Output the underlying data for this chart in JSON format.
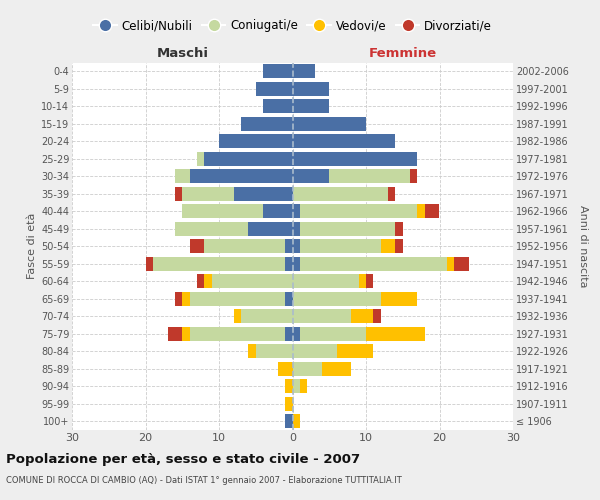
{
  "age_groups": [
    "100+",
    "95-99",
    "90-94",
    "85-89",
    "80-84",
    "75-79",
    "70-74",
    "65-69",
    "60-64",
    "55-59",
    "50-54",
    "45-49",
    "40-44",
    "35-39",
    "30-34",
    "25-29",
    "20-24",
    "15-19",
    "10-14",
    "5-9",
    "0-4"
  ],
  "birth_years": [
    "≤ 1906",
    "1907-1911",
    "1912-1916",
    "1917-1921",
    "1922-1926",
    "1927-1931",
    "1932-1936",
    "1937-1941",
    "1942-1946",
    "1947-1951",
    "1952-1956",
    "1957-1961",
    "1962-1966",
    "1967-1971",
    "1972-1976",
    "1977-1981",
    "1982-1986",
    "1987-1991",
    "1992-1996",
    "1997-2001",
    "2002-2006"
  ],
  "males": {
    "celibi": [
      1,
      0,
      0,
      0,
      0,
      1,
      0,
      1,
      0,
      1,
      1,
      6,
      4,
      8,
      14,
      12,
      10,
      7,
      4,
      5,
      4
    ],
    "coniugati": [
      0,
      0,
      0,
      0,
      5,
      13,
      7,
      13,
      11,
      18,
      11,
      10,
      11,
      7,
      2,
      1,
      0,
      0,
      0,
      0,
      0
    ],
    "vedovi": [
      0,
      1,
      1,
      2,
      1,
      1,
      1,
      1,
      1,
      0,
      0,
      0,
      0,
      0,
      0,
      0,
      0,
      0,
      0,
      0,
      0
    ],
    "divorziati": [
      0,
      0,
      0,
      0,
      0,
      2,
      0,
      1,
      1,
      1,
      2,
      0,
      0,
      1,
      0,
      0,
      0,
      0,
      0,
      0,
      0
    ]
  },
  "females": {
    "nubili": [
      0,
      0,
      0,
      0,
      0,
      1,
      0,
      0,
      0,
      1,
      1,
      1,
      1,
      0,
      5,
      17,
      14,
      10,
      5,
      5,
      3
    ],
    "coniugate": [
      0,
      0,
      1,
      4,
      6,
      9,
      8,
      12,
      9,
      20,
      11,
      13,
      16,
      13,
      11,
      0,
      0,
      0,
      0,
      0,
      0
    ],
    "vedove": [
      1,
      0,
      1,
      4,
      5,
      8,
      3,
      5,
      1,
      1,
      2,
      0,
      1,
      0,
      0,
      0,
      0,
      0,
      0,
      0,
      0
    ],
    "divorziate": [
      0,
      0,
      0,
      0,
      0,
      0,
      1,
      0,
      1,
      2,
      1,
      1,
      2,
      1,
      1,
      0,
      0,
      0,
      0,
      0,
      0
    ]
  },
  "colors": {
    "celibi_nubili": "#4a6fa5",
    "coniugati": "#c5d9a0",
    "vedovi": "#ffc000",
    "divorziati": "#c0392b"
  },
  "title": "Popolazione per età, sesso e stato civile - 2007",
  "subtitle": "COMUNE DI ROCCA DI CAMBIO (AQ) - Dati ISTAT 1° gennaio 2007 - Elaborazione TUTTITALIA.IT",
  "label_maschi": "Maschi",
  "label_femmine": "Femmine",
  "ylabel_left": "Fasce di età",
  "ylabel_right": "Anni di nascita",
  "legend_labels": [
    "Celibi/Nubili",
    "Coniugati/e",
    "Vedovi/e",
    "Divorziati/e"
  ],
  "xlim": 30,
  "background_color": "#eeeeee",
  "plot_background": "#ffffff"
}
